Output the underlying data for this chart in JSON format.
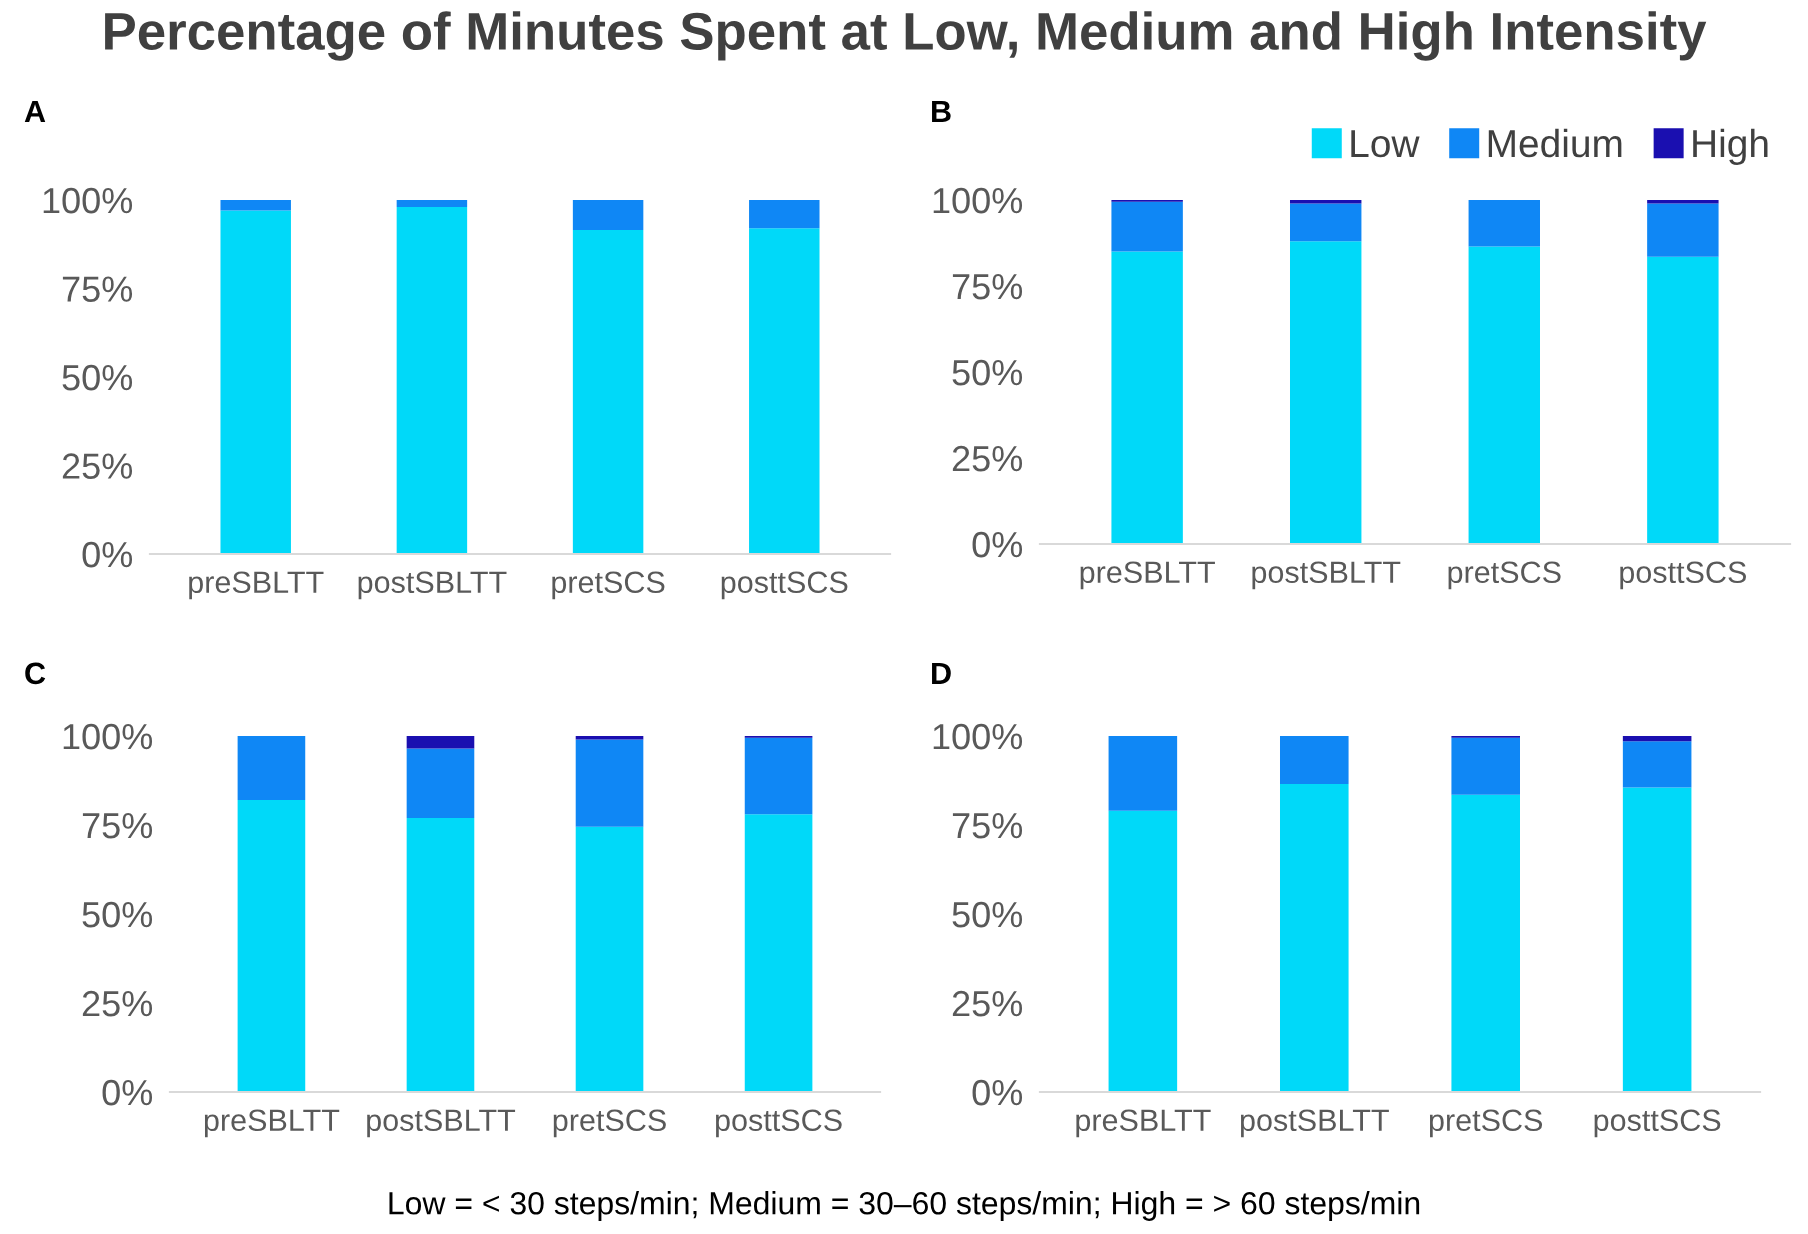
{
  "chart_data": [
    {
      "type": "bar",
      "title": "Percentage of Minutes Spent at Low, Medium and High Intensity",
      "subtitle": "A",
      "stacked": true,
      "categories": [
        "preSBLTT",
        "postSBLTT",
        "pretSCS",
        "posttSCS"
      ],
      "series": [
        {
          "color": "#00d9f9",
          "values": [
            97,
            98,
            91.5,
            92
          ]
        },
        {
          "color": "#0f87f5",
          "values": [
            3,
            2,
            8.5,
            8
          ]
        },
        {
          "color": "#1a0fb0",
          "values": [
            0,
            0,
            0,
            0
          ]
        }
      ],
      "ylim": [
        0,
        100
      ],
      "yticks": [
        {
          "value": 0,
          "label": "0%"
        },
        {
          "value": 25,
          "label": "25%"
        },
        {
          "value": 50,
          "label": "50%"
        },
        {
          "value": 75,
          "label": "75%"
        },
        {
          "value": 100,
          "label": "100%"
        }
      ],
      "grid": false,
      "legend": false
    },
    {
      "type": "bar",
      "subtitle": "B",
      "stacked": true,
      "categories": [
        "preSBLTT",
        "postSBLTT",
        "pretSCS",
        "posttSCS"
      ],
      "series": [
        {
          "name": "Low",
          "color": "#00d9f9",
          "values": [
            85,
            88,
            86.5,
            83.5
          ]
        },
        {
          "name": "Medium",
          "color": "#0f87f5",
          "values": [
            14.5,
            11,
            13.5,
            15.5
          ]
        },
        {
          "name": "High",
          "color": "#1a0fb0",
          "values": [
            0.5,
            1,
            0,
            1
          ]
        }
      ],
      "ylim": [
        0,
        100
      ],
      "yticks": [
        {
          "value": 0,
          "label": "0%"
        },
        {
          "value": 25,
          "label": "25%"
        },
        {
          "value": 50,
          "label": "50%"
        },
        {
          "value": 75,
          "label": "75%"
        },
        {
          "value": 100,
          "label": "100%"
        }
      ],
      "grid": false,
      "legend": "top right"
    },
    {
      "type": "bar",
      "subtitle": "C",
      "stacked": true,
      "categories": [
        "preSBLTT",
        "postSBLTT",
        "pretSCS",
        "posttSCS"
      ],
      "series": [
        {
          "color": "#00d9f9",
          "values": [
            82,
            77,
            74.5,
            78
          ]
        },
        {
          "color": "#0f87f5",
          "values": [
            18,
            19.5,
            24.5,
            21.5
          ]
        },
        {
          "color": "#1a0fb0",
          "values": [
            0,
            3.5,
            1,
            0.5
          ]
        }
      ],
      "ylim": [
        0,
        100
      ],
      "yticks": [
        {
          "value": 0,
          "label": "0%"
        },
        {
          "value": 25,
          "label": "25%"
        },
        {
          "value": 50,
          "label": "50%"
        },
        {
          "value": 75,
          "label": "75%"
        },
        {
          "value": 100,
          "label": "100%"
        }
      ],
      "grid": false,
      "legend": false
    },
    {
      "type": "bar",
      "subtitle": "D",
      "stacked": true,
      "categories": [
        "preSBLTT",
        "postSBLTT",
        "pretSCS",
        "posttSCS"
      ],
      "series": [
        {
          "color": "#00d9f9",
          "values": [
            79,
            86.5,
            83.5,
            85.5
          ]
        },
        {
          "color": "#0f87f5",
          "values": [
            21,
            13.5,
            16,
            13
          ]
        },
        {
          "color": "#1a0fb0",
          "values": [
            0,
            0,
            0.5,
            1.5
          ]
        }
      ],
      "ylim": [
        0,
        100
      ],
      "yticks": [
        {
          "value": 0,
          "label": "0%"
        },
        {
          "value": 25,
          "label": "25%"
        },
        {
          "value": 50,
          "label": "50%"
        },
        {
          "value": 75,
          "label": "75%"
        },
        {
          "value": 100,
          "label": "100%"
        }
      ],
      "grid": false,
      "legend": false,
      "annotations": [
        "Low = < 30 steps/min; Medium = 30–60 steps/min; High = > 60 steps/min"
      ]
    }
  ]
}
